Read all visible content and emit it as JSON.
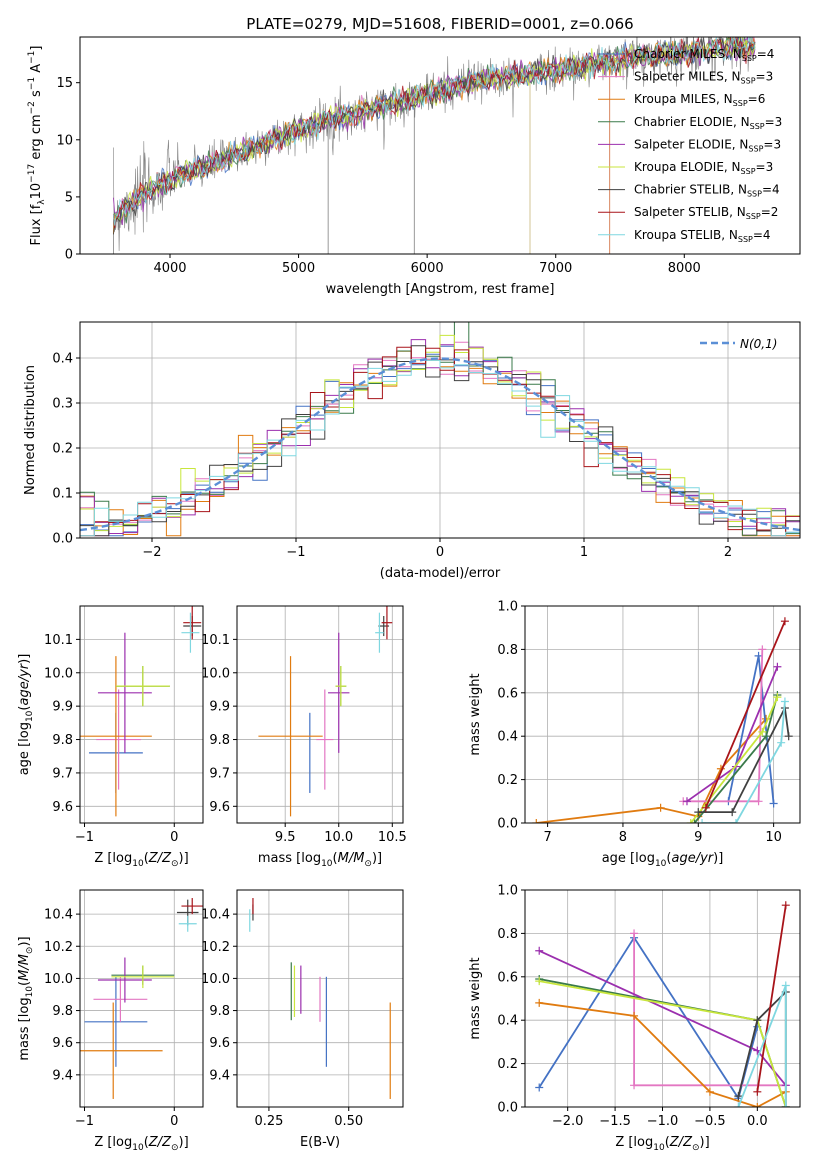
{
  "figure": {
    "title": "PLATE=0279, MJD=51608, FIBERID=0001, z=0.066"
  },
  "colors": {
    "Chabrier MILES": "#4472c4",
    "Salpeter MILES": "#e377c2",
    "Kroupa MILES": "#e07b10",
    "Chabrier ELODIE": "#3a7a4a",
    "Salpeter ELODIE": "#9b2fae",
    "Kroupa ELODIE": "#c8e63c",
    "Chabrier STELIB": "#404040",
    "Salpeter STELIB": "#a8141a",
    "Kroupa STELIB": "#7fd7e0",
    "data_spectrum": "#808080",
    "gaussian": "#5b8fd6",
    "grid": "#b0b0b0"
  },
  "chart_data": [
    {
      "id": "spectrum",
      "type": "line",
      "title": "PLATE=0279, MJD=51608, FIBERID=0001, z=0.066",
      "xlabel": "wavelength [Angstrom, rest frame]",
      "ylabel": "Flux [f_λ 10^-17 erg cm^-2 s^-1 A^-1]",
      "xlim": [
        3300,
        8900
      ],
      "ylim": [
        0,
        19
      ],
      "xticks": [
        4000,
        5000,
        6000,
        7000,
        8000
      ],
      "yticks": [
        0,
        5,
        10,
        15
      ],
      "grid": false,
      "legend_position": "top-right",
      "continuum_x": [
        3550,
        3700,
        3900,
        4100,
        4300,
        4500,
        4800,
        5200,
        5600,
        6000,
        6400,
        6800,
        7200,
        7600,
        8000,
        8400
      ],
      "continuum_y": [
        3.0,
        4.5,
        6.0,
        7.0,
        7.8,
        8.6,
        10.0,
        11.6,
        12.8,
        14.0,
        15.2,
        15.8,
        16.4,
        17.2,
        17.6,
        18.2
      ],
      "series": [
        {
          "name": "Chabrier MILES, N_SSP=4"
        },
        {
          "name": "Salpeter MILES, N_SSP=3"
        },
        {
          "name": "Kroupa MILES, N_SSP=6"
        },
        {
          "name": "Chabrier ELODIE, N_SSP=3"
        },
        {
          "name": "Salpeter ELODIE, N_SSP=3"
        },
        {
          "name": "Kroupa ELODIE, N_SSP=3"
        },
        {
          "name": "Chabrier STELIB, N_SSP=4"
        },
        {
          "name": "Salpeter STELIB, N_SSP=2"
        },
        {
          "name": "Kroupa STELIB, N_SSP=4"
        }
      ]
    },
    {
      "id": "residuals",
      "type": "line",
      "xlabel": "(data-model)/error",
      "ylabel": "Normed distribution",
      "xlim": [
        -2.5,
        2.5
      ],
      "ylim": [
        0,
        0.48
      ],
      "xticks": [
        -2,
        -1,
        0,
        1,
        2
      ],
      "yticks": [
        0.0,
        0.1,
        0.2,
        0.3,
        0.4
      ],
      "grid": true,
      "legend_position": "top-right",
      "gaussian_label": "N(0,1)"
    },
    {
      "id": "age_vs_Z",
      "type": "errorbar",
      "xlabel": "Z [log10(Z/Z_sun)]",
      "ylabel": "age [log10(age/yr)]",
      "xlim": [
        -1.05,
        0.32
      ],
      "ylim": [
        9.55,
        10.2
      ],
      "xticks": [
        -1,
        0
      ],
      "yticks": [
        9.6,
        9.7,
        9.8,
        9.9,
        10.0,
        10.1
      ],
      "grid": true,
      "points": [
        {
          "model": "Chabrier MILES",
          "x": -0.65,
          "xerr": 0.3,
          "y": 9.76,
          "yerr": 0.12
        },
        {
          "model": "Salpeter MILES",
          "x": -0.62,
          "xerr": 0.25,
          "y": 9.8,
          "yerr": 0.15
        },
        {
          "model": "Kroupa MILES",
          "x": -0.65,
          "xerr": 0.4,
          "y": 9.81,
          "yerr": 0.24
        },
        {
          "model": "Chabrier ELODIE",
          "x": -0.35,
          "xerr": 0.3,
          "y": 9.96,
          "yerr": 0.06
        },
        {
          "model": "Salpeter ELODIE",
          "x": -0.55,
          "xerr": 0.3,
          "y": 9.94,
          "yerr": 0.18
        },
        {
          "model": "Kroupa ELODIE",
          "x": -0.35,
          "xerr": 0.3,
          "y": 9.96,
          "yerr": 0.06
        },
        {
          "model": "Chabrier STELIB",
          "x": 0.2,
          "xerr": 0.1,
          "y": 10.14,
          "yerr": 0.03
        },
        {
          "model": "Salpeter STELIB",
          "x": 0.2,
          "xerr": 0.1,
          "y": 10.15,
          "yerr": 0.05
        },
        {
          "model": "Kroupa STELIB",
          "x": 0.18,
          "xerr": 0.1,
          "y": 10.12,
          "yerr": 0.06
        }
      ]
    },
    {
      "id": "age_vs_mass",
      "type": "errorbar",
      "xlabel": "mass [log10(M/M_sun)]",
      "ylabel": "",
      "xlim": [
        9.05,
        10.6
      ],
      "ylim": [
        9.55,
        10.2
      ],
      "xticks": [
        9.5,
        10.0,
        10.5
      ],
      "yticks": [
        9.6,
        9.7,
        9.8,
        9.9,
        10.0,
        10.1
      ],
      "grid": true,
      "points": [
        {
          "model": "Chabrier MILES",
          "x": 9.73,
          "xerr": 0.0,
          "y": 9.76,
          "yerr": 0.12
        },
        {
          "model": "Salpeter MILES",
          "x": 9.87,
          "xerr": 0.08,
          "y": 9.8,
          "yerr": 0.15
        },
        {
          "model": "Kroupa MILES",
          "x": 9.55,
          "xerr": 0.3,
          "y": 9.81,
          "yerr": 0.24
        },
        {
          "model": "Chabrier ELODIE",
          "x": 10.02,
          "xerr": 0.05,
          "y": 9.96,
          "yerr": 0.06
        },
        {
          "model": "Salpeter ELODIE",
          "x": 10.0,
          "xerr": 0.1,
          "y": 9.94,
          "yerr": 0.18
        },
        {
          "model": "Kroupa ELODIE",
          "x": 10.02,
          "xerr": 0.05,
          "y": 9.96,
          "yerr": 0.06
        },
        {
          "model": "Chabrier STELIB",
          "x": 10.42,
          "xerr": 0.05,
          "y": 10.14,
          "yerr": 0.03
        },
        {
          "model": "Salpeter STELIB",
          "x": 10.45,
          "xerr": 0.05,
          "y": 10.15,
          "yerr": 0.05
        },
        {
          "model": "Kroupa STELIB",
          "x": 10.38,
          "xerr": 0.04,
          "y": 10.12,
          "yerr": 0.06
        }
      ]
    },
    {
      "id": "weight_vs_age",
      "type": "line",
      "xlabel": "age [log10(age/yr)]",
      "ylabel": "mass weight",
      "xlim": [
        6.7,
        10.35
      ],
      "ylim": [
        0,
        1.0
      ],
      "xticks": [
        7,
        8,
        9,
        10
      ],
      "yticks": [
        0.0,
        0.2,
        0.4,
        0.6,
        0.8,
        1.0
      ],
      "grid": true,
      "series": [
        {
          "model": "Kroupa MILES",
          "x": [
            6.85,
            8.5,
            9.0,
            9.3,
            9.9
          ],
          "y": [
            0.0,
            0.07,
            0.03,
            0.25,
            0.48
          ]
        },
        {
          "model": "Chabrier MILES",
          "x": [
            9.4,
            9.8,
            10.0
          ],
          "y": [
            0.1,
            0.77,
            0.09
          ]
        },
        {
          "model": "Salpeter MILES",
          "x": [
            8.8,
            9.8,
            9.85
          ],
          "y": [
            0.1,
            0.1,
            0.8
          ]
        },
        {
          "model": "Chabrier ELODIE",
          "x": [
            8.95,
            9.9,
            10.05
          ],
          "y": [
            0.0,
            0.4,
            0.59
          ]
        },
        {
          "model": "Salpeter ELODIE",
          "x": [
            8.85,
            9.5,
            10.05
          ],
          "y": [
            0.1,
            0.26,
            0.72
          ]
        },
        {
          "model": "Kroupa ELODIE",
          "x": [
            8.9,
            9.85,
            10.05
          ],
          "y": [
            0.0,
            0.42,
            0.58
          ]
        },
        {
          "model": "Chabrier STELIB",
          "x": [
            9.0,
            9.45,
            10.15,
            10.2
          ],
          "y": [
            0.05,
            0.05,
            0.53,
            0.4
          ]
        },
        {
          "model": "Salpeter STELIB",
          "x": [
            9.1,
            10.15
          ],
          "y": [
            0.07,
            0.93
          ]
        },
        {
          "model": "Kroupa STELIB",
          "x": [
            9.05,
            9.5,
            10.1,
            10.15
          ],
          "y": [
            0.0,
            0.0,
            0.37,
            0.56
          ]
        }
      ]
    },
    {
      "id": "mass_vs_Z",
      "type": "errorbar",
      "xlabel": "Z [log10(Z/Z_sun)]",
      "ylabel": "mass [log10(M/M_sun)]",
      "xlim": [
        -1.05,
        0.32
      ],
      "ylim": [
        9.2,
        10.55
      ],
      "xticks": [
        -1,
        0
      ],
      "yticks": [
        9.4,
        9.6,
        9.8,
        10.0,
        10.2,
        10.4
      ],
      "grid": true,
      "points": [
        {
          "model": "Chabrier MILES",
          "x": -0.65,
          "xerr": 0.35,
          "y": 9.73,
          "yerr": 0.28
        },
        {
          "model": "Salpeter MILES",
          "x": -0.6,
          "xerr": 0.3,
          "y": 9.87,
          "yerr": 0.14
        },
        {
          "model": "Kroupa MILES",
          "x": -0.68,
          "xerr": 0.55,
          "y": 9.55,
          "yerr": 0.3
        },
        {
          "model": "Chabrier ELODIE",
          "x": -0.35,
          "xerr": 0.35,
          "y": 10.02,
          "yerr": 0.06
        },
        {
          "model": "Salpeter ELODIE",
          "x": -0.55,
          "xerr": 0.3,
          "y": 9.99,
          "yerr": 0.14
        },
        {
          "model": "Kroupa ELODIE",
          "x": -0.35,
          "xerr": 0.35,
          "y": 10.01,
          "yerr": 0.07
        },
        {
          "model": "Chabrier STELIB",
          "x": 0.15,
          "xerr": 0.12,
          "y": 10.41,
          "yerr": 0.08
        },
        {
          "model": "Salpeter STELIB",
          "x": 0.2,
          "xerr": 0.12,
          "y": 10.45,
          "yerr": 0.05
        },
        {
          "model": "Kroupa STELIB",
          "x": 0.15,
          "xerr": 0.1,
          "y": 10.34,
          "yerr": 0.05
        }
      ]
    },
    {
      "id": "mass_vs_ebv",
      "type": "errorbar",
      "xlabel": "E(B-V)",
      "ylabel": "",
      "xlim": [
        0.15,
        0.67
      ],
      "ylim": [
        9.2,
        10.55
      ],
      "xticks": [
        0.25,
        0.5
      ],
      "yticks": [
        9.4,
        9.6,
        9.8,
        10.0,
        10.2,
        10.4
      ],
      "grid": true,
      "points": [
        {
          "model": "Chabrier MILES",
          "x": 0.43,
          "xerr": 0.0,
          "y": 9.73,
          "yerr": 0.28
        },
        {
          "model": "Salpeter MILES",
          "x": 0.41,
          "xerr": 0.0,
          "y": 9.87,
          "yerr": 0.14
        },
        {
          "model": "Kroupa MILES",
          "x": 0.63,
          "xerr": 0.0,
          "y": 9.55,
          "yerr": 0.3
        },
        {
          "model": "Chabrier ELODIE",
          "x": 0.32,
          "xerr": 0.0,
          "y": 9.92,
          "yerr": 0.18
        },
        {
          "model": "Salpeter ELODIE",
          "x": 0.35,
          "xerr": 0.0,
          "y": 9.93,
          "yerr": 0.15
        },
        {
          "model": "Kroupa ELODIE",
          "x": 0.33,
          "xerr": 0.0,
          "y": 9.92,
          "yerr": 0.16
        },
        {
          "model": "Chabrier STELIB",
          "x": 0.2,
          "xerr": 0.0,
          "y": 10.41,
          "yerr": 0.05
        },
        {
          "model": "Salpeter STELIB",
          "x": 0.2,
          "xerr": 0.0,
          "y": 10.45,
          "yerr": 0.05
        },
        {
          "model": "Kroupa STELIB",
          "x": 0.19,
          "xerr": 0.0,
          "y": 10.36,
          "yerr": 0.07
        }
      ]
    },
    {
      "id": "weight_vs_Z",
      "type": "line",
      "xlabel": "Z [log10(Z/Z_sun)]",
      "ylabel": "mass weight",
      "xlim": [
        -2.45,
        0.45
      ],
      "ylim": [
        0,
        1.0
      ],
      "xticks": [
        -2.0,
        -1.5,
        -1.0,
        -0.5,
        0.0
      ],
      "yticks": [
        0.0,
        0.2,
        0.4,
        0.6,
        0.8,
        1.0
      ],
      "grid": true,
      "series": [
        {
          "model": "Chabrier MILES",
          "x": [
            -2.3,
            -1.3,
            -0.2,
            0.0
          ],
          "y": [
            0.09,
            0.78,
            0.04,
            0.37
          ]
        },
        {
          "model": "Salpeter MILES",
          "x": [
            -1.3,
            -1.3,
            0.3
          ],
          "y": [
            0.8,
            0.1,
            0.1
          ]
        },
        {
          "model": "Kroupa MILES",
          "x": [
            -2.3,
            -1.3,
            -0.5,
            0.0,
            0.3
          ],
          "y": [
            0.48,
            0.42,
            0.07,
            0.0,
            0.07
          ]
        },
        {
          "model": "Chabrier ELODIE",
          "x": [
            -2.3,
            0.0,
            0.3
          ],
          "y": [
            0.59,
            0.4,
            0.0
          ]
        },
        {
          "model": "Salpeter ELODIE",
          "x": [
            -2.3,
            0.0,
            0.3
          ],
          "y": [
            0.72,
            0.26,
            0.1
          ]
        },
        {
          "model": "Kroupa ELODIE",
          "x": [
            -2.3,
            0.0,
            0.3
          ],
          "y": [
            0.58,
            0.4,
            0.0
          ]
        },
        {
          "model": "Chabrier STELIB",
          "x": [
            -0.2,
            0.0,
            0.3,
            0.3
          ],
          "y": [
            0.05,
            0.4,
            0.53,
            0.0
          ]
        },
        {
          "model": "Salpeter STELIB",
          "x": [
            0.0,
            0.3
          ],
          "y": [
            0.07,
            0.93
          ]
        },
        {
          "model": "Kroupa STELIB",
          "x": [
            -0.2,
            0.3,
            0.3
          ],
          "y": [
            0.0,
            0.56,
            0.0
          ]
        }
      ]
    }
  ]
}
